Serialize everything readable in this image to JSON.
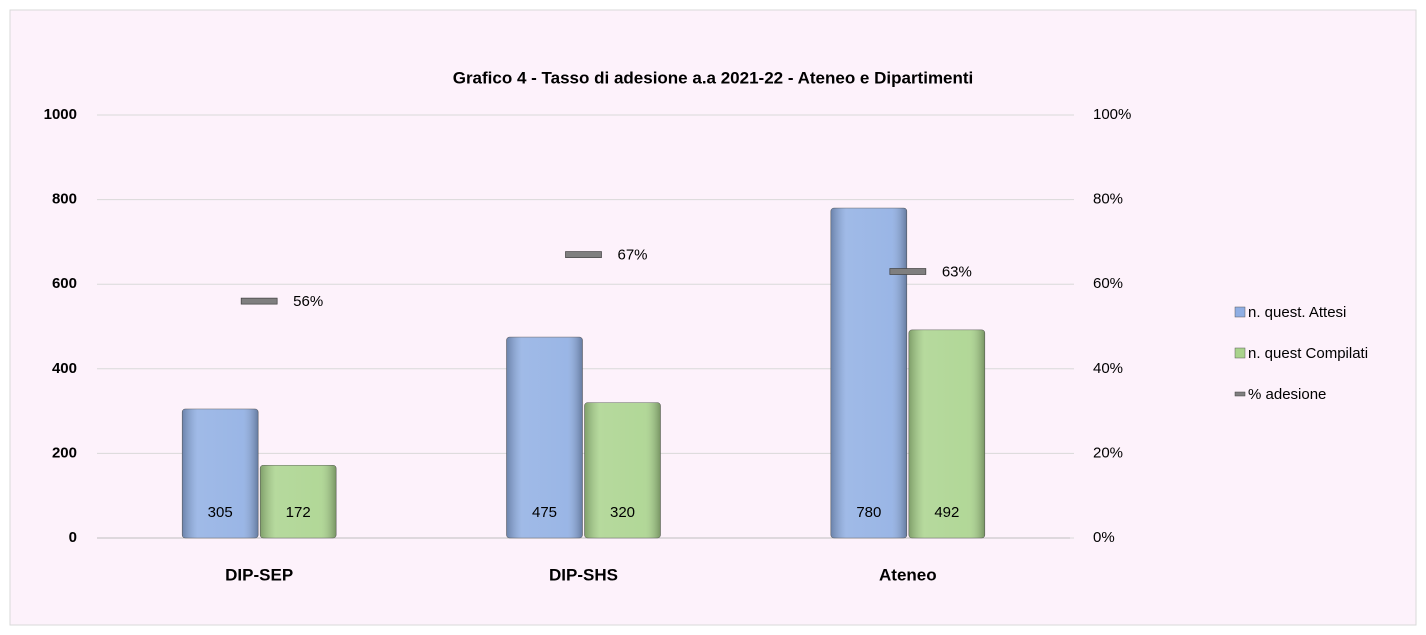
{
  "chart_data": {
    "type": "bar",
    "title": "Grafico 4 - Tasso di adesione a.a 2021-22 - Ateneo e Dipartimenti",
    "categories": [
      "DIP-SEP",
      "DIP-SHS",
      "Ateneo"
    ],
    "series": [
      {
        "name": "n. quest. Attesi",
        "color": "#8faee3",
        "values": [
          305,
          475,
          780
        ]
      },
      {
        "name": "n. quest Compilati",
        "color": "#a9d38c",
        "values": [
          172,
          320,
          492
        ]
      },
      {
        "name": "% adesione",
        "color": "#7f7f7f",
        "axis": "y2",
        "values": [
          56,
          67,
          63
        ],
        "value_labels": [
          "56%",
          "67%",
          "63%"
        ]
      }
    ],
    "ylim": [
      0,
      1000
    ],
    "yticks": [
      0,
      200,
      400,
      600,
      800,
      1000
    ],
    "y2lim": [
      0,
      100
    ],
    "y2ticks": [
      {
        "value": 0,
        "label": "0%"
      },
      {
        "value": 20,
        "label": "20%"
      },
      {
        "value": 40,
        "label": "40%"
      },
      {
        "value": 60,
        "label": "60%"
      },
      {
        "value": 80,
        "label": "80%"
      },
      {
        "value": 100,
        "label": "100%"
      }
    ],
    "grid": true,
    "legend": "right"
  }
}
